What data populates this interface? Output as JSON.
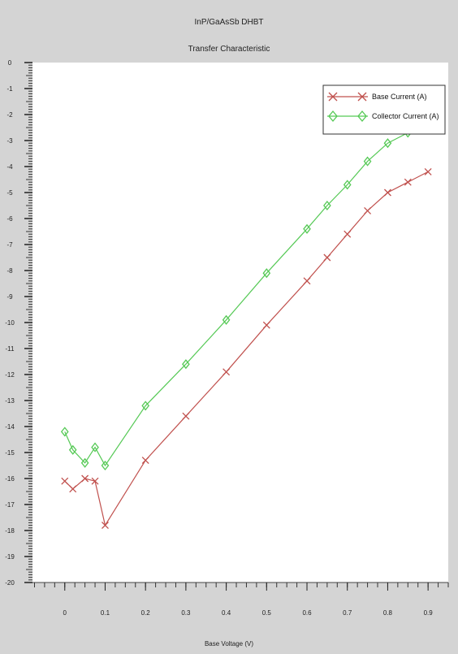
{
  "chart_data": {
    "type": "line",
    "title": "InP/GaAsSb DHBT",
    "subtitle": "Transfer Characteristic",
    "xlabel": "Base Voltage (V)",
    "ylabel": "",
    "xlim": [
      -0.08,
      0.95
    ],
    "ylim": [
      -20,
      0
    ],
    "xticks": [
      0,
      0.1,
      0.2,
      0.3,
      0.4,
      0.5,
      0.6,
      0.7,
      0.8,
      0.9
    ],
    "xtick_labels": [
      "0",
      "0.1",
      "0.2",
      "0.3",
      "0.4",
      "0.5",
      "0.6",
      "0.7",
      "0.8",
      "0.9"
    ],
    "yticks": [
      0,
      -1,
      -2,
      -3,
      -4,
      -5,
      -6,
      -7,
      -8,
      -9,
      -10,
      -11,
      -12,
      -13,
      -14,
      -15,
      -16,
      -17,
      -18,
      -19,
      -20
    ],
    "ytick_labels": [
      "0",
      "-1",
      "-2",
      "-3",
      "-4",
      "-5",
      "-6",
      "-7",
      "-8",
      "-9",
      "-10",
      "-11",
      "-12",
      "-13",
      "-14",
      "-15",
      "-16",
      "-17",
      "-18",
      "-19",
      "-20"
    ],
    "grid": false,
    "legend_position": "top-right",
    "series": [
      {
        "name": "Base Current (A)",
        "color": "#c0504d",
        "marker": "x",
        "x": [
          0.0,
          0.02,
          0.05,
          0.075,
          0.1,
          0.2,
          0.3,
          0.4,
          0.5,
          0.6,
          0.65,
          0.7,
          0.75,
          0.8,
          0.85,
          0.9
        ],
        "y": [
          -16.1,
          -16.4,
          -16.0,
          -16.1,
          -17.8,
          -15.3,
          -13.6,
          -11.9,
          -10.1,
          -8.4,
          -7.5,
          -6.6,
          -5.7,
          -5.0,
          -4.6,
          -4.2
        ]
      },
      {
        "name": "Collector Current (A)",
        "color": "#55c955",
        "marker": "diamond",
        "x": [
          0.0,
          0.02,
          0.05,
          0.075,
          0.1,
          0.2,
          0.3,
          0.4,
          0.5,
          0.6,
          0.65,
          0.7,
          0.75,
          0.8,
          0.85,
          0.9
        ],
        "y": [
          -14.2,
          -14.9,
          -15.4,
          -14.8,
          -15.5,
          -13.2,
          -11.6,
          -9.9,
          -8.1,
          -6.4,
          -5.5,
          -4.7,
          -3.8,
          -3.1,
          -2.7,
          -2.5
        ]
      }
    ]
  }
}
